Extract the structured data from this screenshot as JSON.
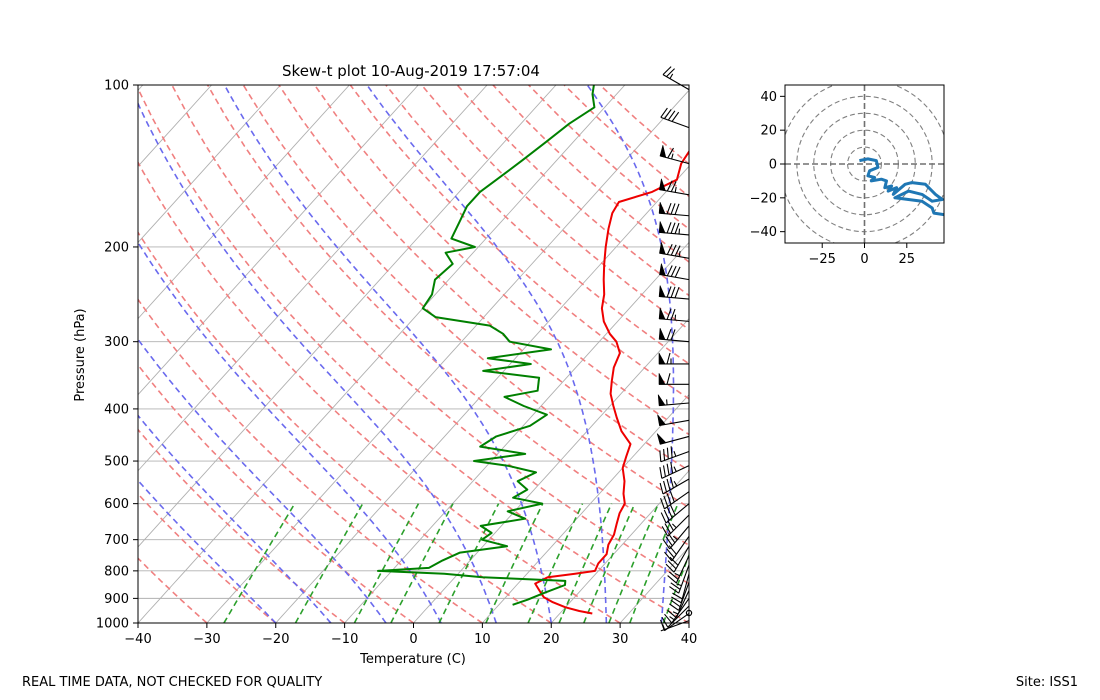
{
  "chart_data": [
    {
      "type": "line",
      "title": "Skew-t plot 10-Aug-2019 17:57:04",
      "xlabel": "Temperature (C)",
      "ylabel": "Pressure (hPa)",
      "xlim": [
        -40,
        40
      ],
      "ylim": [
        1000,
        100
      ],
      "log_y": true,
      "grid": true,
      "x_ticks": [
        "−40",
        "−30",
        "−20",
        "−10",
        "0",
        "10",
        "20",
        "30",
        "40"
      ],
      "x_tick_values": [
        -40,
        -30,
        -20,
        -10,
        0,
        10,
        20,
        30,
        40
      ],
      "y_ticks": [
        "100",
        "200",
        "300",
        "400",
        "500",
        "600",
        "700",
        "800",
        "900",
        "1000"
      ],
      "y_tick_values": [
        100,
        200,
        300,
        400,
        500,
        600,
        700,
        800,
        900,
        1000
      ],
      "colors": {
        "temperature": "#ee0000",
        "dewpoint": "#008000",
        "isotherm": "#b0b0b0",
        "dry_adiabat": "#f08080",
        "moist_adiabat": "#6a6aee",
        "mixing_ratio": "#2ca02c",
        "barb": "#000000"
      },
      "series": [
        {
          "key": "temperature",
          "points": [
            [
              24.7,
              960
            ],
            [
              22.5,
              950
            ],
            [
              20.0,
              935
            ],
            [
              17.5,
              915
            ],
            [
              15.5,
              895
            ],
            [
              14.0,
              870
            ],
            [
              12.5,
              845
            ],
            [
              13.5,
              822
            ],
            [
              17.0,
              810
            ],
            [
              19.5,
              800
            ],
            [
              19.0,
              775
            ],
            [
              19.0,
              745
            ],
            [
              18.0,
              715
            ],
            [
              17.5,
              685
            ],
            [
              16.5,
              655
            ],
            [
              15.5,
              625
            ],
            [
              15.0,
              600
            ],
            [
              13.5,
              575
            ],
            [
              12.0,
              545
            ],
            [
              10.0,
              515
            ],
            [
              9.0,
              490
            ],
            [
              8.0,
              465
            ],
            [
              5.0,
              440
            ],
            [
              2.5,
              415
            ],
            [
              0.5,
              395
            ],
            [
              -1.5,
              375
            ],
            [
              -3.0,
              355
            ],
            [
              -4.5,
              335
            ],
            [
              -5.5,
              315
            ],
            [
              -7.5,
              300
            ],
            [
              -9.5,
              290
            ],
            [
              -12.0,
              275
            ],
            [
              -14.0,
              260
            ],
            [
              -15.5,
              245
            ],
            [
              -17.5,
              230
            ],
            [
              -19.5,
              215
            ],
            [
              -21.5,
              200
            ],
            [
              -23.5,
              185
            ],
            [
              -25.0,
              173
            ],
            [
              -25.5,
              165
            ],
            [
              -22.0,
              158
            ],
            [
              -20.0,
              150
            ],
            [
              -21.5,
              140
            ],
            [
              -22.0,
              132
            ],
            [
              -20.5,
              125
            ],
            [
              -20.0,
              118
            ],
            [
              -21.5,
              110
            ],
            [
              -22.0,
              105
            ],
            [
              -18.0,
              102
            ],
            [
              -15.0,
              100
            ]
          ]
        },
        {
          "key": "dewpoint",
          "points": [
            [
              12.0,
              925
            ],
            [
              13.5,
              905
            ],
            [
              15.0,
              880
            ],
            [
              17.0,
              850
            ],
            [
              16.5,
              835
            ],
            [
              4.0,
              822
            ],
            [
              -2.0,
              810
            ],
            [
              -12.0,
              800
            ],
            [
              -5.0,
              790
            ],
            [
              -4.0,
              765
            ],
            [
              -2.5,
              740
            ],
            [
              3.5,
              720
            ],
            [
              -1.0,
              700
            ],
            [
              -0.5,
              680
            ],
            [
              -3.0,
              660
            ],
            [
              2.5,
              640
            ],
            [
              -1.0,
              620
            ],
            [
              3.0,
              600
            ],
            [
              -2.0,
              585
            ],
            [
              -1.0,
              565
            ],
            [
              -3.5,
              545
            ],
            [
              -2.0,
              525
            ],
            [
              -7.0,
              510
            ],
            [
              -12.5,
              500
            ],
            [
              -6.0,
              485
            ],
            [
              -13.5,
              470
            ],
            [
              -12.5,
              450
            ],
            [
              -9.0,
              430
            ],
            [
              -8.0,
              410
            ],
            [
              -12.5,
              395
            ],
            [
              -16.5,
              380
            ],
            [
              -12.5,
              370
            ],
            [
              -14.0,
              350
            ],
            [
              -23.0,
              340
            ],
            [
              -17.0,
              330
            ],
            [
              -24.0,
              322
            ],
            [
              -16.0,
              310
            ],
            [
              -23.0,
              300
            ],
            [
              -25.0,
              290
            ],
            [
              -28.0,
              280
            ],
            [
              -37.0,
              270
            ],
            [
              -40.0,
              260
            ],
            [
              -40.5,
              245
            ],
            [
              -42.0,
              230
            ],
            [
              -41.5,
              215
            ],
            [
              -44.0,
              205
            ],
            [
              -40.5,
              200
            ],
            [
              -45.0,
              193
            ],
            [
              -46.0,
              180
            ],
            [
              -47.0,
              168
            ],
            [
              -47.0,
              158
            ],
            [
              -46.0,
              148
            ],
            [
              -45.0,
              138
            ],
            [
              -44.0,
              128
            ],
            [
              -43.0,
              118
            ],
            [
              -41.5,
              110
            ],
            [
              -43.5,
              104
            ],
            [
              -44.5,
              100
            ]
          ]
        }
      ],
      "wind_profile": [
        {
          "p": 990,
          "dir": 250,
          "spd": 5
        },
        {
          "p": 960,
          "dir": 235,
          "spd": 10
        },
        {
          "p": 930,
          "dir": 225,
          "spd": 10
        },
        {
          "p": 900,
          "dir": 215,
          "spd": 15
        },
        {
          "p": 870,
          "dir": 205,
          "spd": 15
        },
        {
          "p": 840,
          "dir": 200,
          "spd": 20
        },
        {
          "p": 810,
          "dir": 195,
          "spd": 20
        },
        {
          "p": 780,
          "dir": 200,
          "spd": 25
        },
        {
          "p": 750,
          "dir": 205,
          "spd": 25
        },
        {
          "p": 720,
          "dir": 210,
          "spd": 30
        },
        {
          "p": 690,
          "dir": 215,
          "spd": 30
        },
        {
          "p": 660,
          "dir": 220,
          "spd": 35
        },
        {
          "p": 630,
          "dir": 225,
          "spd": 35
        },
        {
          "p": 600,
          "dir": 230,
          "spd": 40
        },
        {
          "p": 570,
          "dir": 235,
          "spd": 40
        },
        {
          "p": 540,
          "dir": 240,
          "spd": 45
        },
        {
          "p": 510,
          "dir": 245,
          "spd": 45
        },
        {
          "p": 480,
          "dir": 250,
          "spd": 45
        },
        {
          "p": 450,
          "dir": 255,
          "spd": 50
        },
        {
          "p": 420,
          "dir": 260,
          "spd": 50
        },
        {
          "p": 390,
          "dir": 265,
          "spd": 55
        },
        {
          "p": 360,
          "dir": 270,
          "spd": 60
        },
        {
          "p": 330,
          "dir": 270,
          "spd": 65
        },
        {
          "p": 300,
          "dir": 275,
          "spd": 70
        },
        {
          "p": 275,
          "dir": 275,
          "spd": 75
        },
        {
          "p": 250,
          "dir": 275,
          "spd": 80
        },
        {
          "p": 230,
          "dir": 280,
          "spd": 80
        },
        {
          "p": 210,
          "dir": 280,
          "spd": 85
        },
        {
          "p": 190,
          "dir": 275,
          "spd": 85
        },
        {
          "p": 175,
          "dir": 275,
          "spd": 80
        },
        {
          "p": 160,
          "dir": 280,
          "spd": 75
        },
        {
          "p": 140,
          "dir": 285,
          "spd": 65
        },
        {
          "p": 120,
          "dir": 290,
          "spd": 40
        },
        {
          "p": 102,
          "dir": 300,
          "spd": 25
        }
      ]
    },
    {
      "type": "line",
      "title": "",
      "xlabel": "",
      "ylabel": "",
      "xlim": [
        -47,
        47
      ],
      "ylim": [
        -47,
        47
      ],
      "grid": true,
      "x_ticks": [
        "−25",
        "0",
        "25"
      ],
      "x_tick_values": [
        -25,
        0,
        25
      ],
      "y_ticks": [
        "40",
        "20",
        "0",
        "−20",
        "−40"
      ],
      "y_tick_values": [
        40,
        20,
        0,
        -20,
        -40
      ],
      "rings": [
        10,
        20,
        30,
        40,
        50
      ],
      "line_color": "#1f77b4",
      "series": [
        {
          "key": "hodograph",
          "points": [
            [
              -3,
              2
            ],
            [
              2,
              3
            ],
            [
              7,
              2
            ],
            [
              8,
              -2
            ],
            [
              3,
              -4
            ],
            [
              2,
              -7
            ],
            [
              6,
              -8
            ],
            [
              4,
              -10
            ],
            [
              10,
              -9
            ],
            [
              13,
              -10
            ],
            [
              12,
              -14
            ],
            [
              16,
              -13
            ],
            [
              14,
              -16
            ],
            [
              19,
              -14
            ],
            [
              17,
              -18
            ],
            [
              24,
              -12
            ],
            [
              28,
              -11
            ],
            [
              36,
              -12
            ],
            [
              42,
              -18
            ],
            [
              46,
              -21
            ],
            [
              40,
              -22
            ],
            [
              34,
              -18
            ],
            [
              26,
              -16
            ],
            [
              18,
              -20
            ],
            [
              34,
              -22
            ],
            [
              40,
              -26
            ],
            [
              41,
              -29
            ],
            [
              47,
              -30
            ]
          ]
        }
      ]
    }
  ],
  "footer": {
    "left": "REAL TIME DATA, NOT CHECKED FOR QUALITY",
    "right": "Site: ISS1"
  }
}
